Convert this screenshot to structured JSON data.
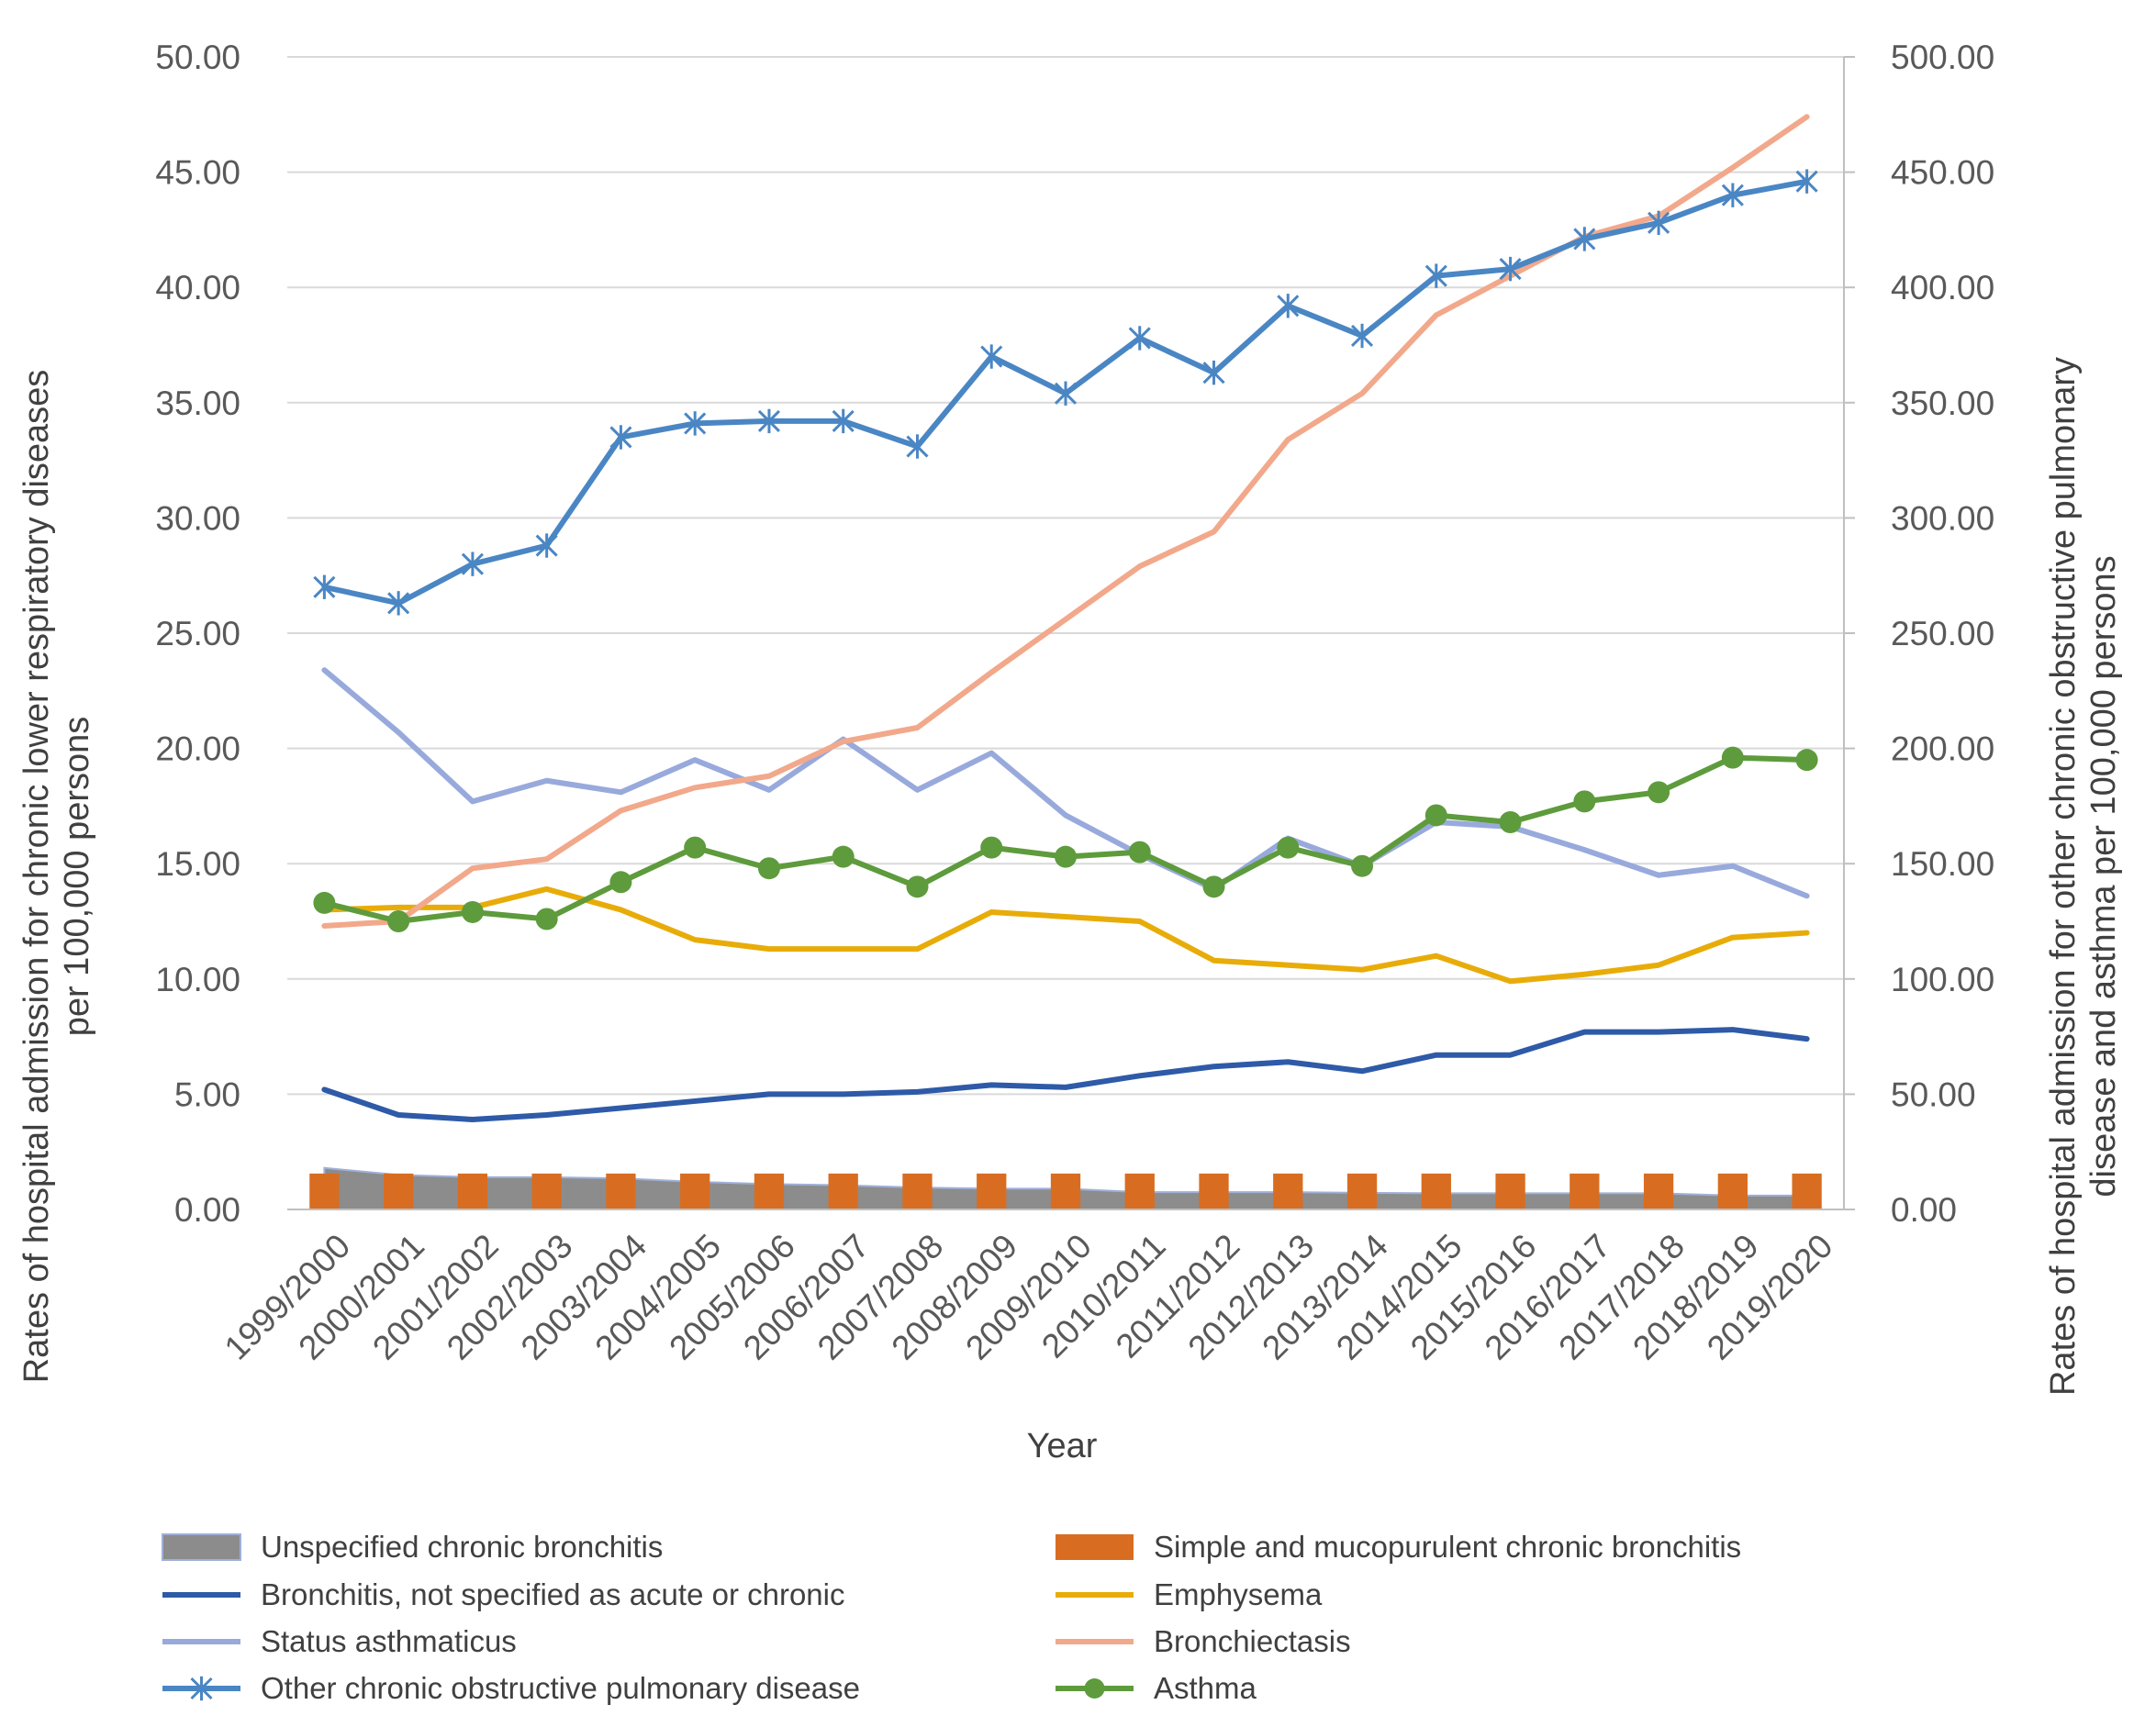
{
  "chart_data": {
    "type": "line",
    "title": "",
    "xlabel": "Year",
    "ylabel_left": "Rates of hospital admission for chronic lower respiratory diseases per 100,000 persons",
    "ylabel_right": "Rates of hospital admission for other chronic obstructive pulmonary disease and asthma per 100,000 persons",
    "ylim_left": [
      0,
      50
    ],
    "ylim_right": [
      0,
      500
    ],
    "yticks_left": [
      "0.00",
      "5.00",
      "10.00",
      "15.00",
      "20.00",
      "25.00",
      "30.00",
      "35.00",
      "40.00",
      "45.00",
      "50.00"
    ],
    "yticks_right": [
      "0.00",
      "50.00",
      "100.00",
      "150.00",
      "200.00",
      "250.00",
      "300.00",
      "350.00",
      "400.00",
      "450.00",
      "500.00"
    ],
    "grid": true,
    "legend_position": "bottom",
    "categories": [
      "1999/2000",
      "2000/2001",
      "2001/2002",
      "2002/2003",
      "2003/2004",
      "2004/2005",
      "2005/2006",
      "2006/2007",
      "2007/2008",
      "2008/2009",
      "2009/2010",
      "2010/2011",
      "2011/2012",
      "2012/2013",
      "2013/2014",
      "2014/2015",
      "2015/2016",
      "2016/2017",
      "2017/2018",
      "2018/2019",
      "2019/2020"
    ],
    "series": [
      {
        "name": "Unspecified chronic bronchitis",
        "kind": "area",
        "axis": "left",
        "color": "#8c8c8c",
        "values": [
          1.8,
          1.5,
          1.4,
          1.4,
          1.35,
          1.2,
          1.1,
          1.05,
          0.95,
          0.9,
          0.9,
          0.75,
          0.75,
          0.75,
          0.72,
          0.7,
          0.7,
          0.7,
          0.7,
          0.6,
          0.6
        ]
      },
      {
        "name": "Simple and mucopurulent chronic bronchitis",
        "kind": "bar",
        "axis": "left",
        "color": "#d86d22",
        "values": [
          1.0,
          1.0,
          1.0,
          1.0,
          1.0,
          1.0,
          1.0,
          1.0,
          1.0,
          1.0,
          1.0,
          1.0,
          1.0,
          1.0,
          1.0,
          1.0,
          1.0,
          1.0,
          1.0,
          1.0,
          1.0
        ]
      },
      {
        "name": "Bronchitis, not specified as acute or chronic",
        "kind": "line",
        "axis": "left",
        "color": "#2e5aa8",
        "values": [
          5.2,
          4.1,
          3.9,
          4.1,
          4.4,
          4.7,
          5.0,
          5.0,
          5.1,
          5.4,
          5.3,
          5.8,
          6.2,
          6.4,
          6.0,
          6.7,
          6.7,
          7.7,
          7.7,
          7.8,
          7.4
        ]
      },
      {
        "name": "Emphysema",
        "kind": "line",
        "axis": "left",
        "color": "#e8ac09",
        "values": [
          13.0,
          13.1,
          13.1,
          13.9,
          13.0,
          11.7,
          11.3,
          11.3,
          11.3,
          12.9,
          12.7,
          12.5,
          10.8,
          10.6,
          10.4,
          11.0,
          9.9,
          10.2,
          10.6,
          11.8,
          12.0
        ]
      },
      {
        "name": "Status asthmaticus",
        "kind": "line",
        "axis": "left",
        "color": "#98a9dc",
        "values": [
          23.4,
          20.7,
          17.7,
          18.6,
          18.1,
          19.5,
          18.2,
          20.4,
          18.2,
          19.8,
          17.1,
          15.4,
          13.9,
          16.1,
          14.9,
          16.8,
          16.6,
          15.6,
          14.5,
          14.9,
          13.6
        ]
      },
      {
        "name": "Bronchiectasis",
        "kind": "line",
        "axis": "left",
        "color": "#f2a88b",
        "values": [
          12.3,
          12.5,
          14.8,
          15.2,
          17.3,
          18.3,
          18.8,
          20.3,
          20.9,
          23.3,
          25.6,
          27.9,
          29.4,
          33.4,
          35.4,
          38.8,
          40.5,
          42.2,
          43.1,
          45.2,
          47.4
        ]
      },
      {
        "name": "Other chronic obstructive pulmonary disease",
        "kind": "line-marker-star",
        "axis": "right",
        "color": "#4a86c4",
        "values": [
          270,
          263,
          280,
          288,
          335,
          341,
          342,
          342,
          331,
          370,
          354,
          378,
          363,
          392,
          379,
          405,
          408,
          421,
          428,
          440,
          446
        ]
      },
      {
        "name": "Asthma",
        "kind": "line-marker-circle",
        "axis": "right",
        "color": "#5e9b3c",
        "values": [
          133,
          125,
          129,
          126,
          142,
          157,
          148,
          153,
          140,
          157,
          153,
          155,
          140,
          157,
          149,
          171,
          168,
          177,
          181,
          196,
          195
        ]
      }
    ]
  }
}
